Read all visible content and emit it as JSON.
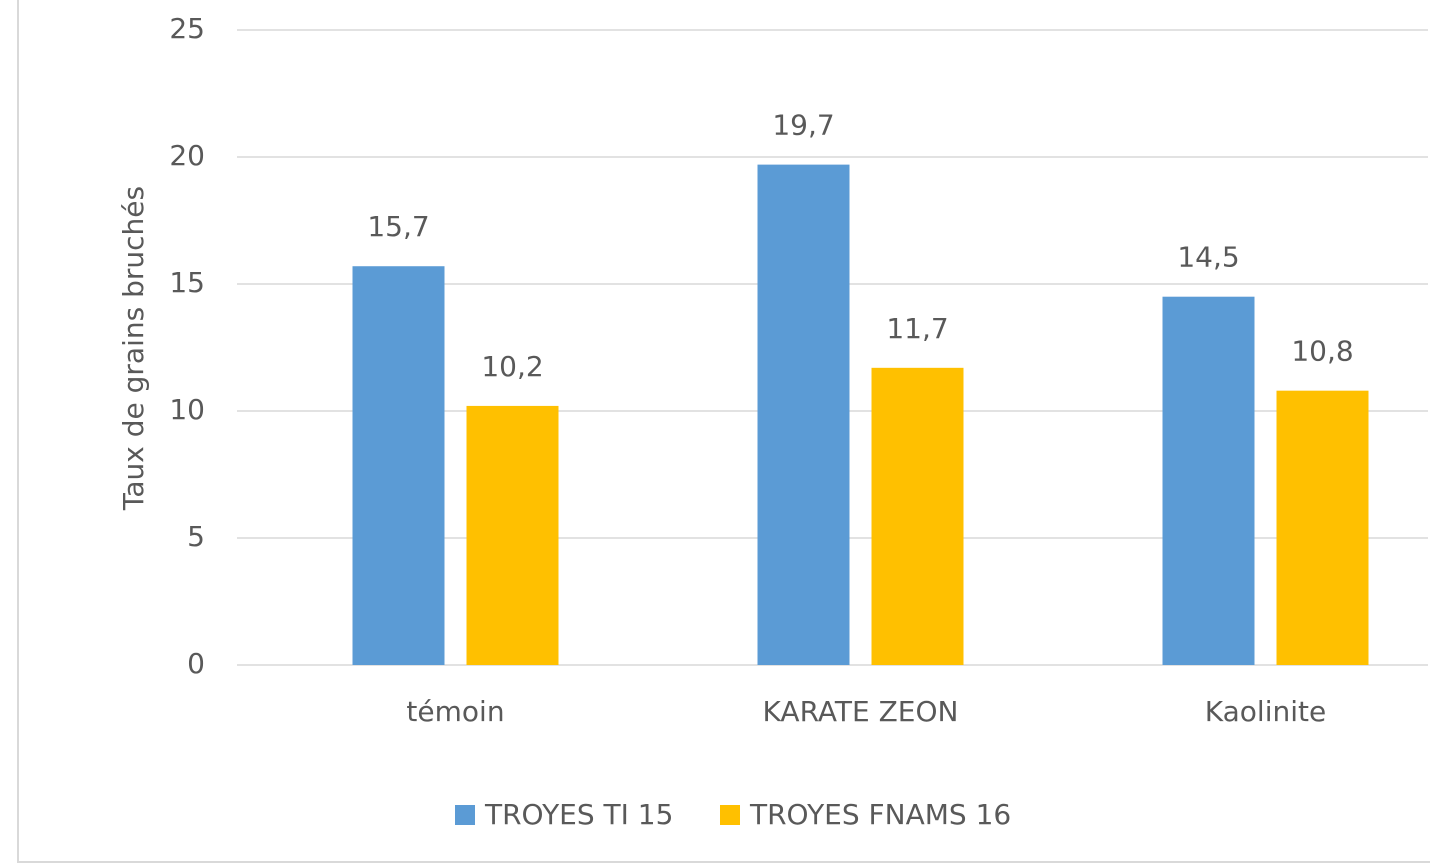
{
  "chart_data": {
    "type": "bar",
    "y_axis_label": "Taux de grains bruchés",
    "categories": [
      "témoin",
      "KARATE ZEON",
      "Kaolinite"
    ],
    "series": [
      {
        "name": "TROYES TI 15",
        "color": "#5b9bd5",
        "values": [
          15.7,
          19.7,
          14.5
        ],
        "value_labels": [
          "15,7",
          "19,7",
          "14,5"
        ]
      },
      {
        "name": "TROYES FNAMS 16",
        "color": "#ffc000",
        "values": [
          10.2,
          11.7,
          10.8
        ],
        "value_labels": [
          "10,2",
          "11,7",
          "10,8"
        ]
      }
    ],
    "ylim": [
      0,
      25
    ],
    "yticks": [
      0,
      5,
      10,
      15,
      20,
      25
    ],
    "grid": true,
    "legend": "bottom"
  }
}
